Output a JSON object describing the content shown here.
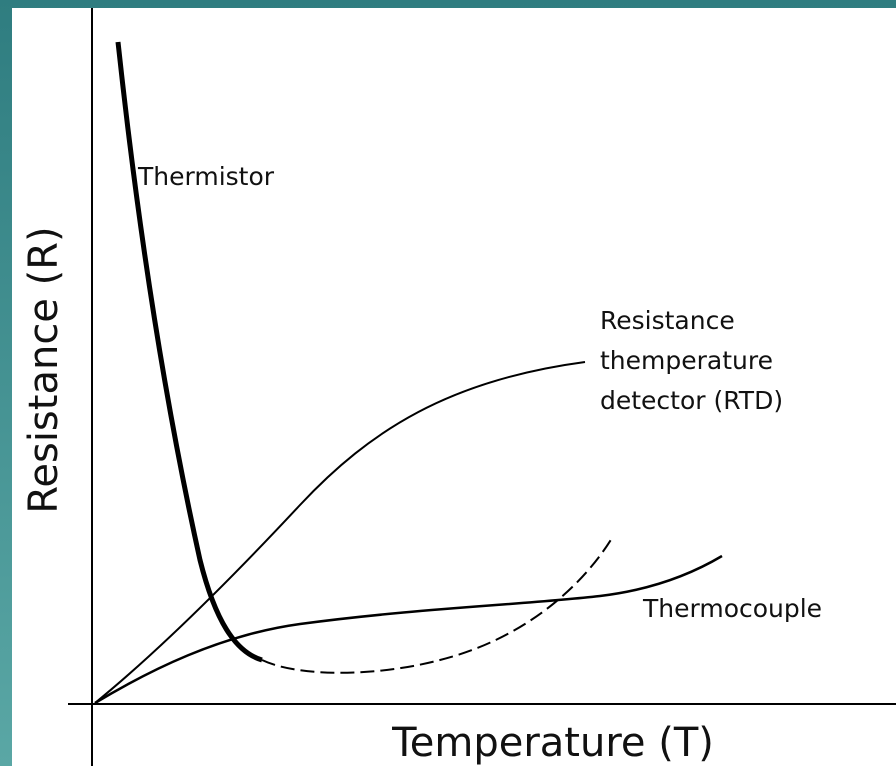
{
  "axes": {
    "y_label": "Resistance (R)",
    "x_label": "Temperature (T)"
  },
  "curves": {
    "thermistor": {
      "label": "Thermistor"
    },
    "rtd": {
      "label_lines": [
        "Resistance",
        "themperature",
        "detector (RTD)"
      ]
    },
    "thermocouple": {
      "label": "Thermocouple"
    }
  }
}
